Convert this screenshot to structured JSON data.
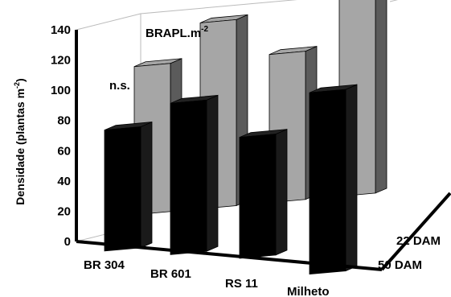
{
  "chart_data": {
    "type": "bar",
    "subtype": "3d-grouped",
    "title": "",
    "annotation_main": "BRAPL.m",
    "annotation_main_exponent": "-2",
    "annotation_ns": "n.s.",
    "xlabel": "",
    "ylabel": "Densidade (plantas m",
    "ylabel_exponent": "-2",
    "ylabel_close": ")",
    "ylim": [
      0,
      140
    ],
    "yticks": [
      "0",
      "20",
      "40",
      "60",
      "80",
      "100",
      "120",
      "140"
    ],
    "categories": [
      "BR 304",
      "BR 601",
      "RS 11",
      "Milheto"
    ],
    "series": [
      {
        "name": "22 DAM",
        "color": "#a6a6a6",
        "values": [
          98,
          123,
          98,
          136
        ]
      },
      {
        "name": "50 DAM",
        "color": "#000000",
        "values": [
          80,
          100,
          80,
          120
        ]
      }
    ],
    "depth_labels": [
      "22 DAM",
      "50 DAM"
    ],
    "grid": false,
    "legend": "none"
  }
}
